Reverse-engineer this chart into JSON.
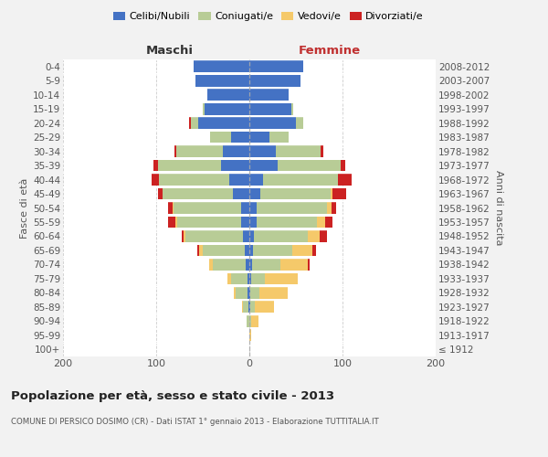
{
  "age_groups": [
    "100+",
    "95-99",
    "90-94",
    "85-89",
    "80-84",
    "75-79",
    "70-74",
    "65-69",
    "60-64",
    "55-59",
    "50-54",
    "45-49",
    "40-44",
    "35-39",
    "30-34",
    "25-29",
    "20-24",
    "15-19",
    "10-14",
    "5-9",
    "0-4"
  ],
  "birth_years": [
    "≤ 1912",
    "1913-1917",
    "1918-1922",
    "1923-1927",
    "1928-1932",
    "1933-1937",
    "1938-1942",
    "1943-1947",
    "1948-1952",
    "1953-1957",
    "1958-1962",
    "1963-1967",
    "1968-1972",
    "1973-1977",
    "1978-1982",
    "1983-1987",
    "1988-1992",
    "1993-1997",
    "1998-2002",
    "2003-2007",
    "2008-2012"
  ],
  "males_celibi": [
    0,
    0,
    0,
    1,
    2,
    2,
    4,
    5,
    7,
    9,
    9,
    18,
    22,
    30,
    28,
    20,
    55,
    48,
    45,
    58,
    60
  ],
  "males_coniugati": [
    0,
    0,
    3,
    6,
    13,
    18,
    35,
    45,
    62,
    68,
    72,
    75,
    75,
    68,
    50,
    22,
    8,
    2,
    0,
    0,
    0
  ],
  "males_vedovi": [
    0,
    0,
    0,
    1,
    2,
    4,
    4,
    4,
    2,
    2,
    1,
    0,
    0,
    0,
    0,
    0,
    0,
    0,
    0,
    0,
    0
  ],
  "males_divorziati": [
    0,
    0,
    0,
    0,
    0,
    0,
    0,
    2,
    2,
    8,
    5,
    5,
    8,
    5,
    2,
    0,
    2,
    0,
    0,
    0,
    0
  ],
  "females_nubili": [
    0,
    0,
    0,
    1,
    1,
    2,
    3,
    4,
    5,
    8,
    8,
    12,
    15,
    30,
    28,
    22,
    50,
    45,
    42,
    55,
    58
  ],
  "females_coniugate": [
    0,
    0,
    2,
    5,
    10,
    15,
    30,
    42,
    58,
    65,
    75,
    75,
    80,
    68,
    48,
    20,
    8,
    2,
    0,
    0,
    0
  ],
  "females_vedove": [
    0,
    2,
    8,
    20,
    30,
    35,
    30,
    22,
    12,
    8,
    5,
    2,
    0,
    0,
    0,
    0,
    0,
    0,
    0,
    0,
    0
  ],
  "females_divorziate": [
    0,
    0,
    0,
    0,
    0,
    0,
    2,
    4,
    8,
    8,
    5,
    15,
    15,
    5,
    3,
    0,
    0,
    0,
    0,
    0,
    0
  ],
  "color_celibi": "#4472c4",
  "color_coniugati": "#b8cc96",
  "color_vedovi": "#f5c96a",
  "color_divorziati": "#cc2222",
  "title": "Popolazione per età, sesso e stato civile - 2013",
  "subtitle": "COMUNE DI PERSICO DOSIMO (CR) - Dati ISTAT 1° gennaio 2013 - Elaborazione TUTTITALIA.IT",
  "label_maschi": "Maschi",
  "label_femmine": "Femmine",
  "label_fasce": "Fasce di età",
  "label_anni": "Anni di nascita",
  "legend_labels": [
    "Celibi/Nubili",
    "Coniugati/e",
    "Vedovi/e",
    "Divorziati/e"
  ],
  "xlim": 200,
  "bg_color": "#f2f2f2",
  "plot_bg": "#ffffff"
}
